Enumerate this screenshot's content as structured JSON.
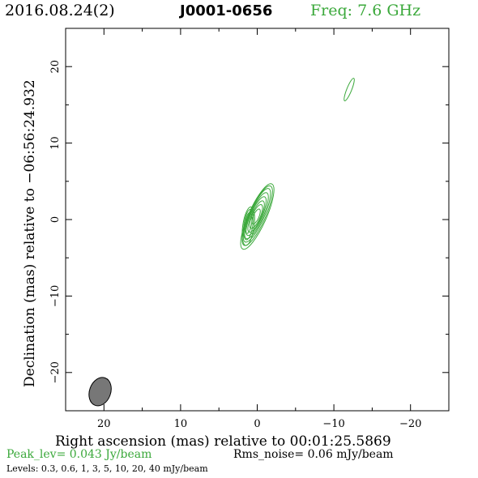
{
  "header": {
    "date": "2016.08.24(2)",
    "source": "J0001-0656",
    "frequency": "Freq: 7.6 GHz"
  },
  "footer": {
    "peak": "Peak_lev=  0.043 Jy/beam",
    "rms": "Rms_noise= 0.06 mJy/beam",
    "levels": "Levels: 0.3, 0.6,   1,   3,   5,  10,  20,  40 mJy/beam"
  },
  "colors": {
    "contour": "#3aa83a",
    "beam": "#777777",
    "frame": "#000000"
  },
  "chart_data": {
    "type": "contour",
    "xlabel": "Right ascension (mas) relative to 00:01:25.5869",
    "ylabel": "Declination (mas) relative to −06:56:24.932",
    "xlim": [
      25,
      -25
    ],
    "ylim": [
      -25,
      25
    ],
    "x_ticks": [
      "20",
      "10",
      "0",
      "−10",
      "−20"
    ],
    "x_tick_values": [
      20,
      10,
      0,
      -10,
      -20
    ],
    "y_ticks": [
      "−20",
      "−10",
      "0",
      "10",
      "20"
    ],
    "y_tick_values": [
      -20,
      -10,
      0,
      10,
      20
    ],
    "grid": false,
    "contour_levels_mjy": [
      0.3,
      0.6,
      1,
      3,
      5,
      10,
      20,
      40
    ],
    "components": [
      {
        "x": 0.2,
        "y": 0.4,
        "description": "core"
      },
      {
        "x": -12.0,
        "y": 17.0,
        "description": "faint component"
      }
    ],
    "beam": {
      "x": 20.5,
      "y": -22.5,
      "major_mas": 3.8,
      "minor_mas": 1.2,
      "pa_deg": 20
    }
  }
}
